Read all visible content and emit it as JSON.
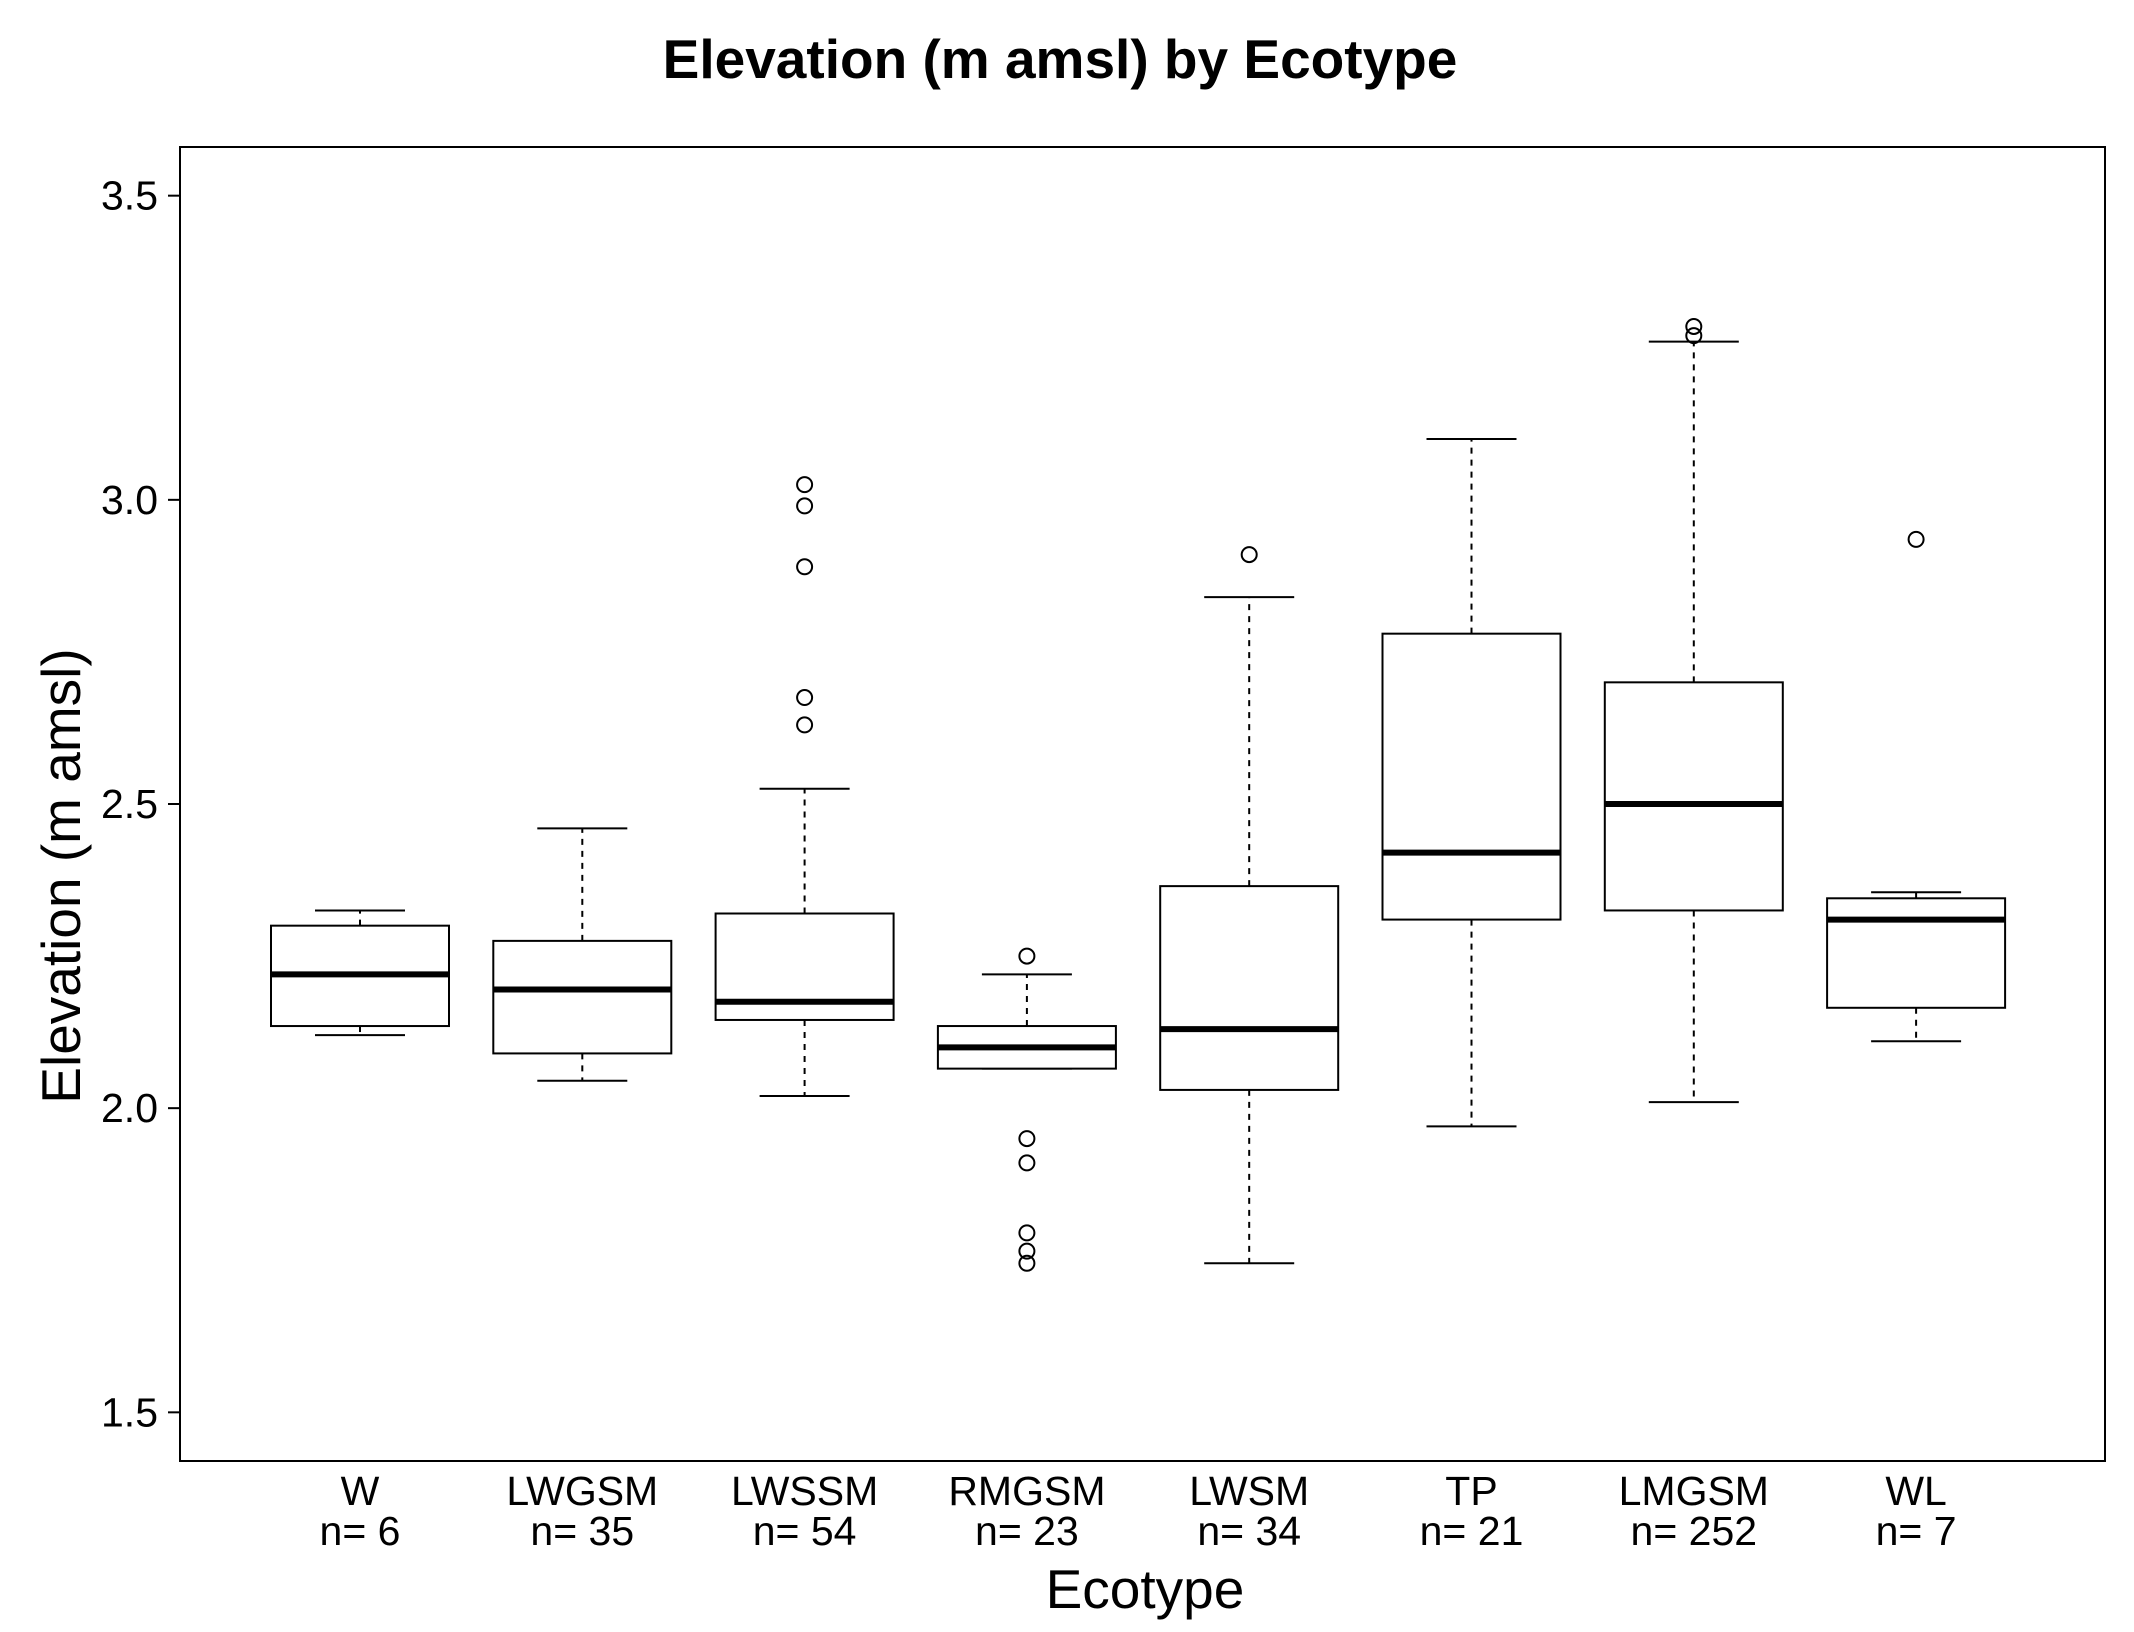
{
  "chart_data": {
    "type": "boxplot",
    "title": "Elevation (m amsl) by Ecotype",
    "xlabel": "Ecotype",
    "ylabel": "Elevation  (m amsl)",
    "ylim": [
      1.42,
      3.58
    ],
    "yticks": [
      1.5,
      2.0,
      2.5,
      3.0,
      3.5
    ],
    "ytick_labels": [
      "1.5",
      "2.0",
      "2.5",
      "3.0",
      "3.5"
    ],
    "grid": false,
    "categories": [
      {
        "name": "W",
        "n_label": "n= 6",
        "whisker_low": 2.12,
        "q1": 2.135,
        "median": 2.22,
        "q3": 2.3,
        "whisker_high": 2.325,
        "outliers": []
      },
      {
        "name": "LWGSM",
        "n_label": "n= 35",
        "whisker_low": 2.045,
        "q1": 2.09,
        "median": 2.195,
        "q3": 2.275,
        "whisker_high": 2.46,
        "outliers": []
      },
      {
        "name": "LWSSM",
        "n_label": "n= 54",
        "whisker_low": 2.02,
        "q1": 2.145,
        "median": 2.175,
        "q3": 2.32,
        "whisker_high": 2.525,
        "outliers": [
          2.63,
          2.675,
          2.89,
          2.99,
          3.025
        ]
      },
      {
        "name": "RMGSM",
        "n_label": "n= 23",
        "whisker_low": 2.065,
        "q1": 2.065,
        "median": 2.1,
        "q3": 2.135,
        "whisker_high": 2.22,
        "outliers": [
          1.745,
          1.765,
          1.795,
          1.91,
          1.95,
          2.25
        ]
      },
      {
        "name": "LWSM",
        "n_label": "n= 34",
        "whisker_low": 1.745,
        "q1": 2.03,
        "median": 2.13,
        "q3": 2.365,
        "whisker_high": 2.84,
        "outliers": [
          2.91
        ]
      },
      {
        "name": "TP",
        "n_label": "n= 21",
        "whisker_low": 1.97,
        "q1": 2.31,
        "median": 2.42,
        "q3": 2.78,
        "whisker_high": 3.1,
        "outliers": []
      },
      {
        "name": "LMGSM",
        "n_label": "n= 252",
        "whisker_low": 2.01,
        "q1": 2.325,
        "median": 2.5,
        "q3": 2.7,
        "whisker_high": 3.26,
        "outliers": [
          3.27,
          3.285
        ]
      },
      {
        "name": "WL",
        "n_label": "n= 7",
        "whisker_low": 2.11,
        "q1": 2.165,
        "median": 2.31,
        "q3": 2.345,
        "whisker_high": 2.355,
        "outliers": [
          2.935
        ]
      }
    ]
  }
}
